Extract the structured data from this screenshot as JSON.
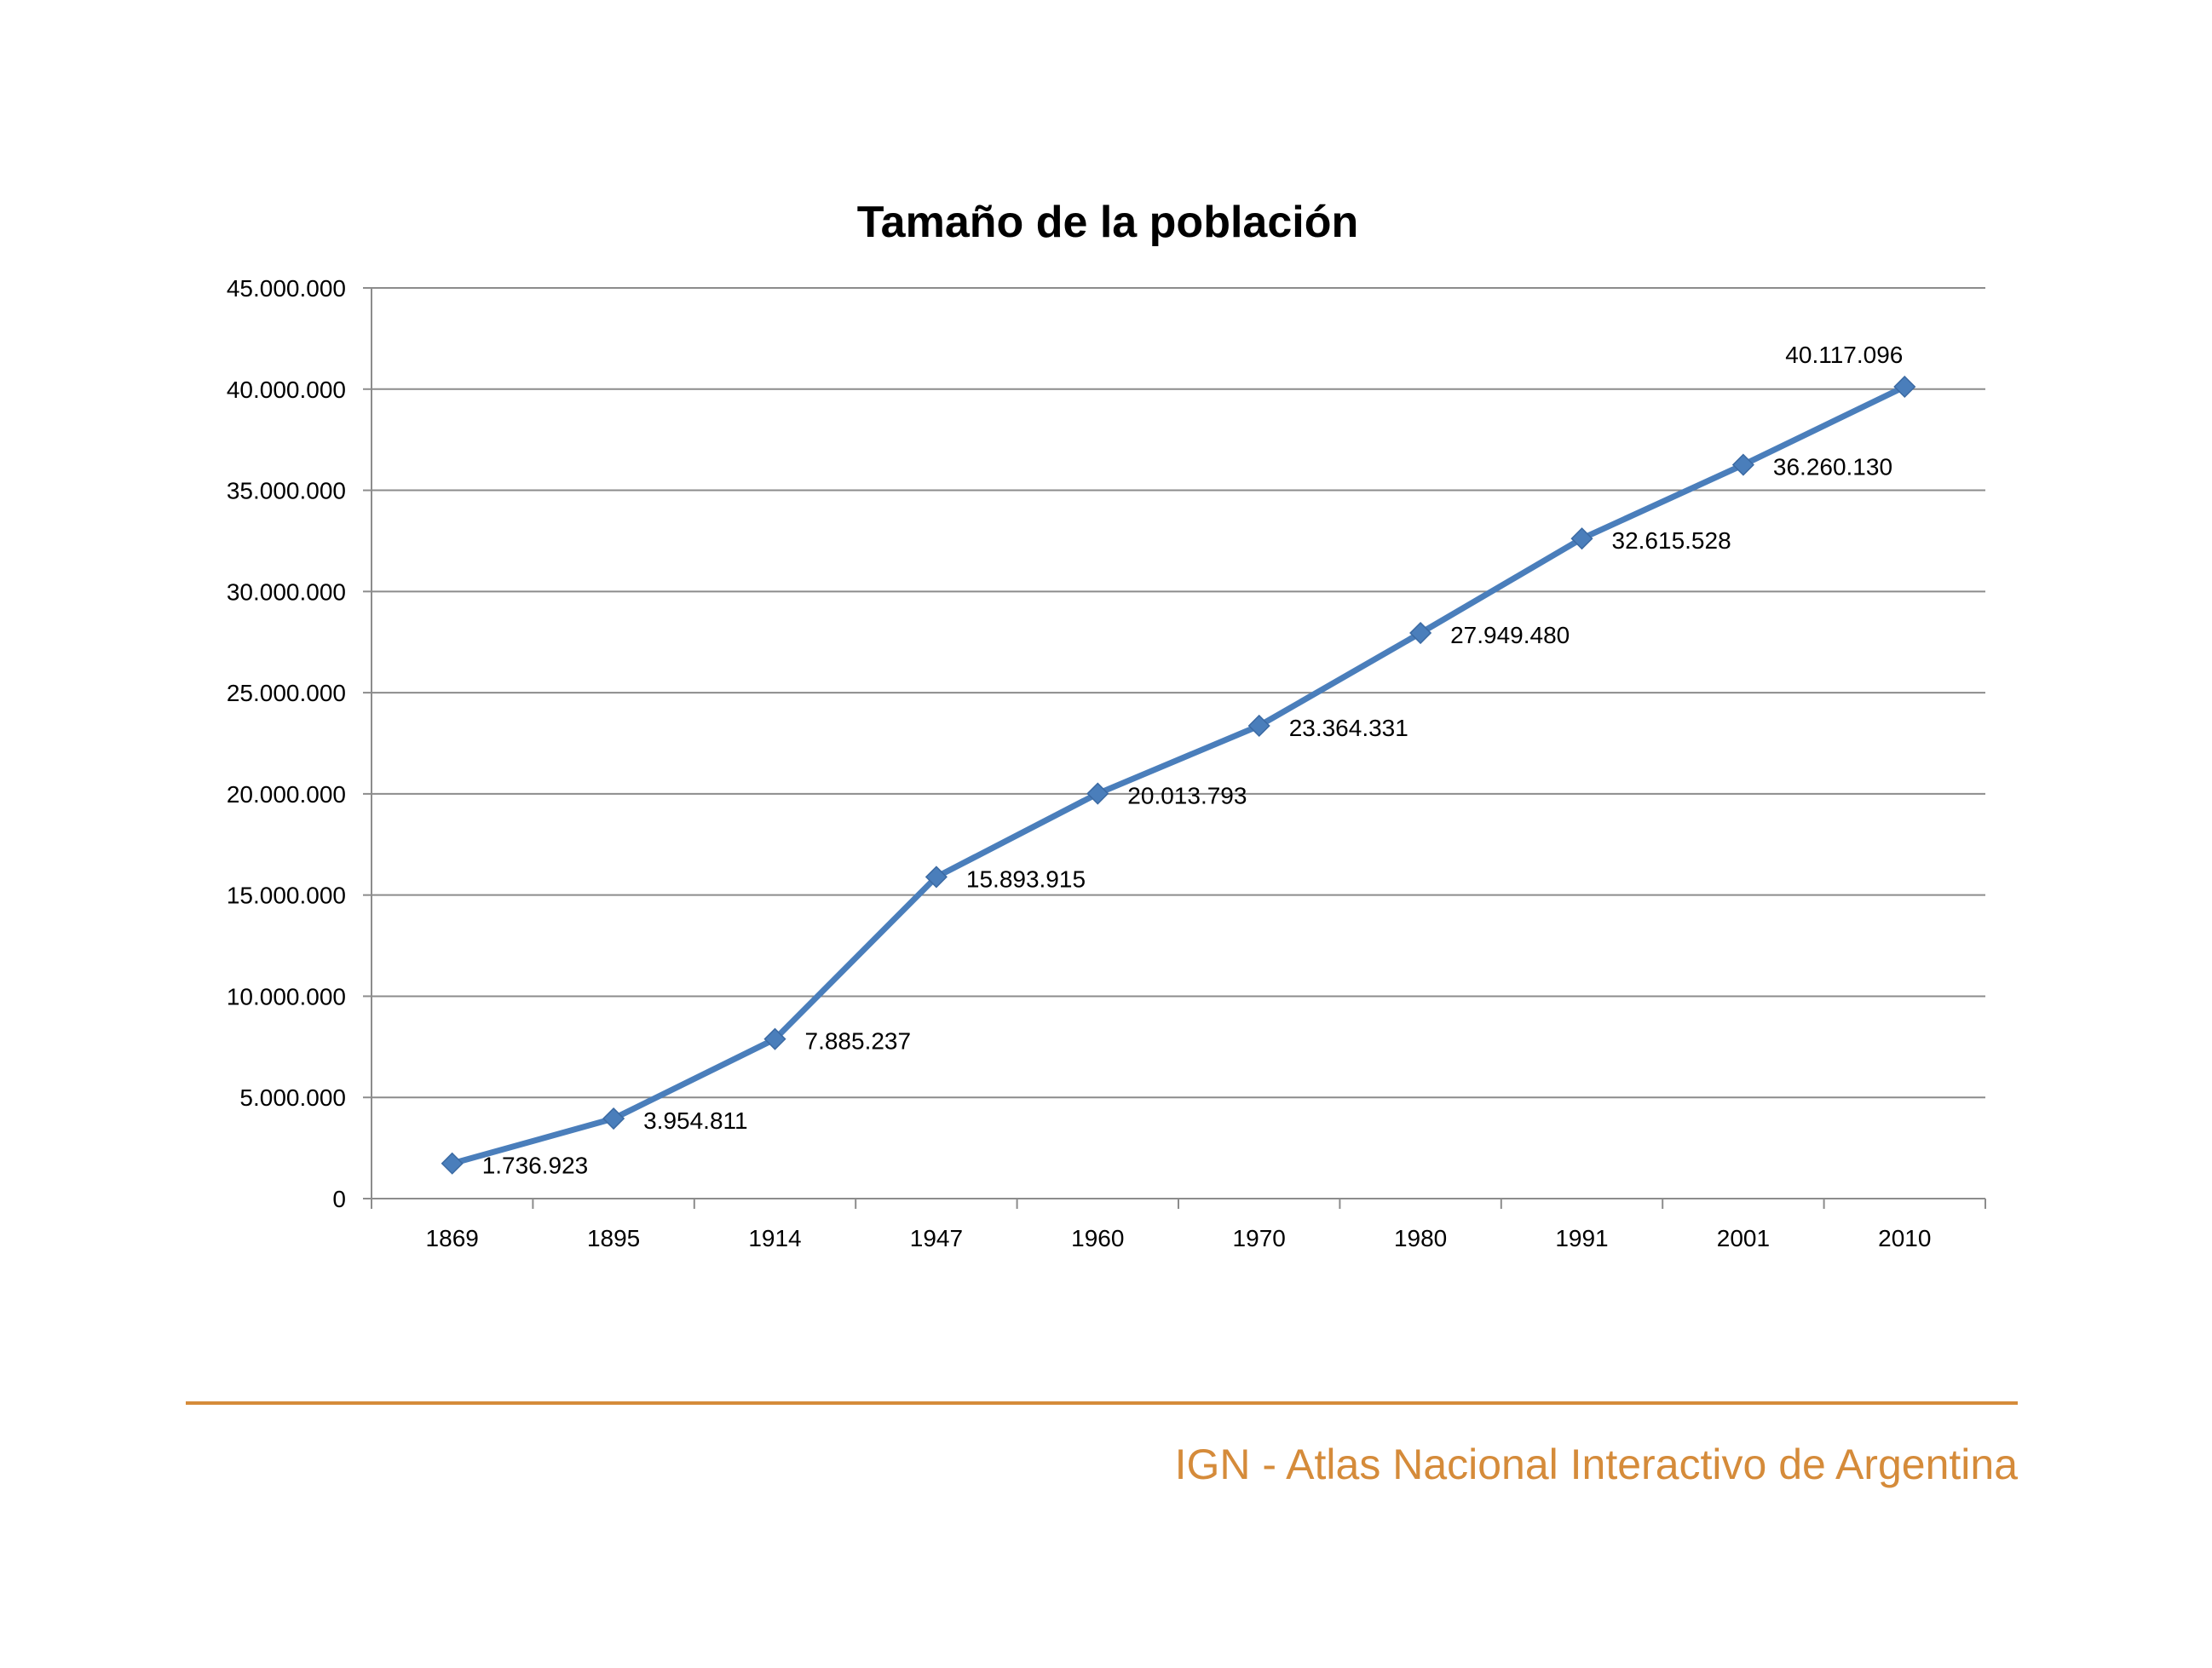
{
  "chart_data": {
    "type": "line",
    "title": "Tamaño de la población",
    "xlabel": "",
    "ylabel": "",
    "categories": [
      "1869",
      "1895",
      "1914",
      "1947",
      "1960",
      "1970",
      "1980",
      "1991",
      "2001",
      "2010"
    ],
    "series": [
      {
        "values": [
          1736923,
          3954811,
          7885237,
          15893915,
          20013793,
          23364331,
          27949480,
          32615528,
          36260130,
          40117096
        ],
        "data_labels": [
          "1.736.923",
          "3.954.811",
          "7.885.237",
          "15.893.915",
          "20.013.793",
          "23.364.331",
          "27.949.480",
          "32.615.528",
          "36.260.130",
          "40.117.096"
        ],
        "color": "#4a7ebb",
        "marker": "diamond"
      }
    ],
    "ylim": [
      0,
      45000000
    ],
    "y_ticks": [
      0,
      5000000,
      10000000,
      15000000,
      20000000,
      25000000,
      30000000,
      35000000,
      40000000,
      45000000
    ],
    "y_tick_labels": [
      "0",
      "5.000.000",
      "10.000.000",
      "15.000.000",
      "20.000.000",
      "25.000.000",
      "30.000.000",
      "35.000.000",
      "40.000.000",
      "45.000.000"
    ],
    "grid": true,
    "legend": "none"
  },
  "footer": {
    "text": "IGN - Atlas Nacional Interactivo de Argentina",
    "color": "#d58b3a"
  }
}
